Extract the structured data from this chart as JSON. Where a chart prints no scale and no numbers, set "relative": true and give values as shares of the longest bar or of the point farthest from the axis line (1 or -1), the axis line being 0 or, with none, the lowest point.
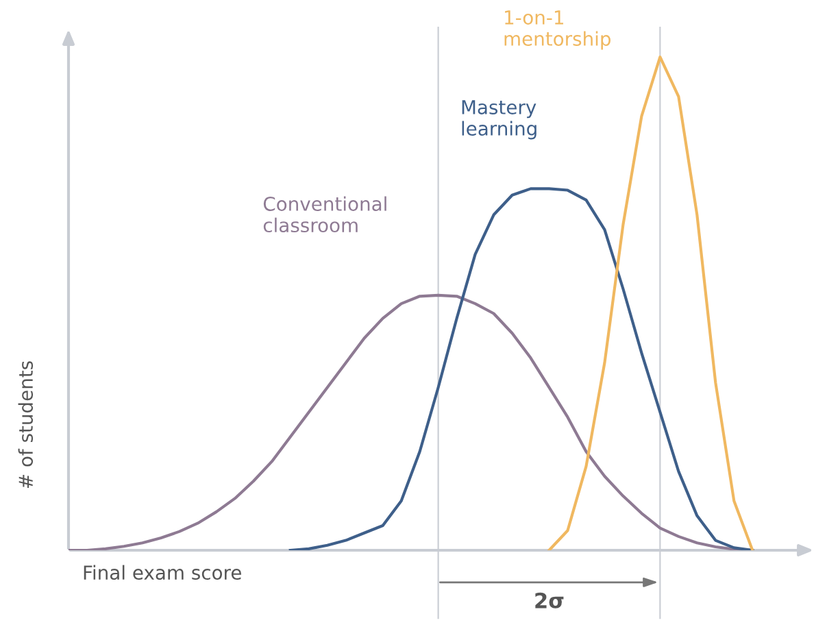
{
  "chart_data": {
    "type": "line",
    "relative": true,
    "xlabel": "Final exam score",
    "ylabel": "# of students",
    "categories": [
      null,
      null,
      null,
      null,
      null,
      null,
      null,
      null,
      null,
      null,
      null,
      null,
      null,
      null,
      null,
      null,
      null,
      null,
      null,
      null,
      null,
      null,
      null,
      null,
      null,
      null,
      null,
      null,
      null,
      null,
      null,
      null,
      null,
      null,
      null,
      null,
      null,
      null,
      null,
      null,
      null
    ],
    "series": [
      {
        "name": "Conventional classroom",
        "color": "#8e7a93",
        "values": [
          0,
          0,
          0.003,
          0.008,
          0.015,
          0.025,
          0.038,
          0.055,
          0.078,
          0.105,
          0.14,
          0.18,
          0.23,
          0.28,
          0.33,
          0.38,
          0.43,
          0.47,
          0.5,
          0.515,
          0.517,
          0.515,
          0.5,
          0.48,
          0.44,
          0.39,
          0.33,
          0.27,
          0.2,
          0.15,
          0.11,
          0.075,
          0.045,
          0.028,
          0.015,
          0.007,
          0.002,
          0,
          null,
          null,
          null
        ]
      },
      {
        "name": "Mastery learning",
        "color": "#3e5f8a",
        "values": [
          null,
          null,
          null,
          null,
          null,
          null,
          null,
          null,
          null,
          null,
          null,
          null,
          0,
          0.003,
          0.01,
          0.02,
          0.035,
          0.05,
          0.1,
          0.2,
          0.33,
          0.47,
          0.6,
          0.68,
          0.72,
          0.733,
          0.733,
          0.73,
          0.71,
          0.65,
          0.53,
          0.4,
          0.28,
          0.16,
          0.07,
          0.02,
          0.005,
          0,
          null,
          null,
          null
        ]
      },
      {
        "name": "1-on-1 mentorship",
        "color": "#f0b860",
        "values": [
          null,
          null,
          null,
          null,
          null,
          null,
          null,
          null,
          null,
          null,
          null,
          null,
          null,
          null,
          null,
          null,
          null,
          null,
          null,
          null,
          null,
          null,
          null,
          null,
          null,
          null,
          0,
          0.04,
          0.17,
          0.38,
          0.66,
          0.88,
          1.0,
          0.92,
          0.68,
          0.34,
          0.1,
          0,
          null,
          null,
          null
        ]
      }
    ],
    "annotations": [
      "2σ"
    ],
    "grid": false,
    "legend": false,
    "line_style": "solid",
    "marker": "none"
  }
}
